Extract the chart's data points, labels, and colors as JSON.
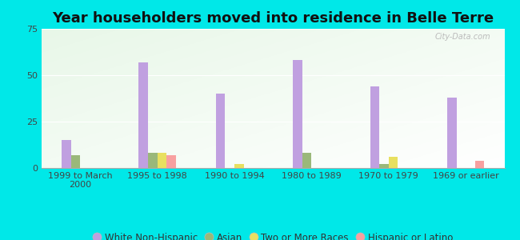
{
  "title": "Year householders moved into residence in Belle Terre",
  "categories": [
    "1999 to March\n2000",
    "1995 to 1998",
    "1990 to 1994",
    "1980 to 1989",
    "1970 to 1979",
    "1969 or earlier"
  ],
  "series": {
    "White Non-Hispanic": [
      15,
      57,
      40,
      58,
      44,
      38
    ],
    "Asian": [
      7,
      8,
      0,
      8,
      2,
      0
    ],
    "Two or More Races": [
      0,
      8,
      2,
      0,
      6,
      0
    ],
    "Hispanic or Latino": [
      0,
      7,
      0,
      0,
      0,
      4
    ]
  },
  "colors": {
    "White Non-Hispanic": "#c0a0e0",
    "Asian": "#9ab87a",
    "Two or More Races": "#e8e060",
    "Hispanic or Latino": "#f8a0a0"
  },
  "bar_width": 0.12,
  "ylim": [
    0,
    75
  ],
  "yticks": [
    0,
    25,
    50,
    75
  ],
  "background_color": "#00e8e8",
  "title_fontsize": 13,
  "tick_fontsize": 8,
  "legend_fontsize": 8.5,
  "watermark": "City-Data.com"
}
